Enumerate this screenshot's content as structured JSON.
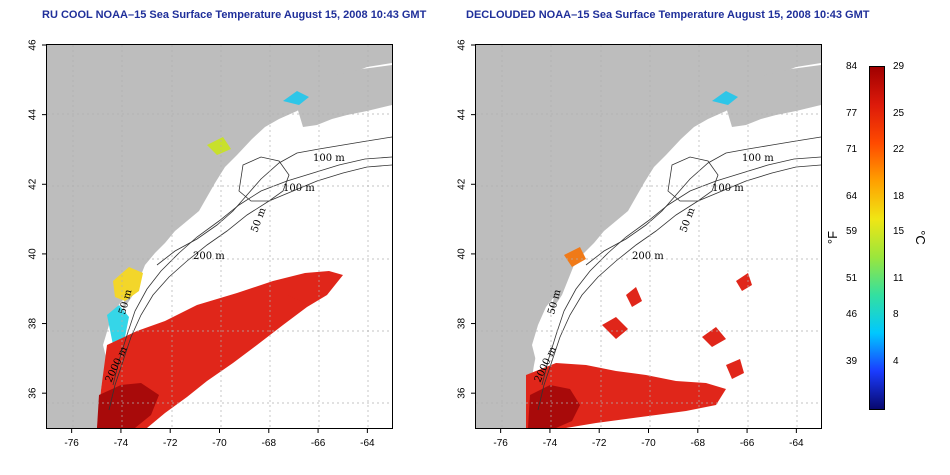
{
  "titles": {
    "left": "RU COOL NOAA–15 Sea Surface Temperature August 15, 2008 10:43 GMT",
    "right": "DECLOUDED NOAA–15 Sea Surface Temperature August 15, 2008 10:43 GMT"
  },
  "axes": {
    "lon_ticks": [
      "-76",
      "-74",
      "-72",
      "-70",
      "-68",
      "-66",
      "-64"
    ],
    "lat_ticks": [
      "36",
      "38",
      "40",
      "42",
      "44",
      "46"
    ],
    "lon_range": [
      -77,
      -63
    ],
    "lat_range": [
      35,
      46
    ]
  },
  "contours": {
    "labels": [
      "100 m",
      "100 m",
      "50 m",
      "200 m",
      "50 m",
      "2000 m"
    ]
  },
  "colorbar": {
    "fahrenheit_ticks": [
      "84",
      "77",
      "71",
      "64",
      "59",
      "51",
      "46",
      "39"
    ],
    "celsius_ticks": [
      "29",
      "25",
      "22",
      "18",
      "15",
      "11",
      "8",
      "4"
    ],
    "celsius_range": [
      0,
      29
    ],
    "unit_f": "°F",
    "unit_c": "°C",
    "colors": [
      "#08086e",
      "#1a3cff",
      "#00c8ff",
      "#33e0a0",
      "#9be63c",
      "#f0e614",
      "#ffa000",
      "#ff4a00",
      "#dd1a0a",
      "#a00000"
    ]
  },
  "colors": {
    "land": "#bdbdbd",
    "title": "#1f2f9a",
    "warm_water": "#e0261a",
    "hot_water": "#a80a0a"
  }
}
